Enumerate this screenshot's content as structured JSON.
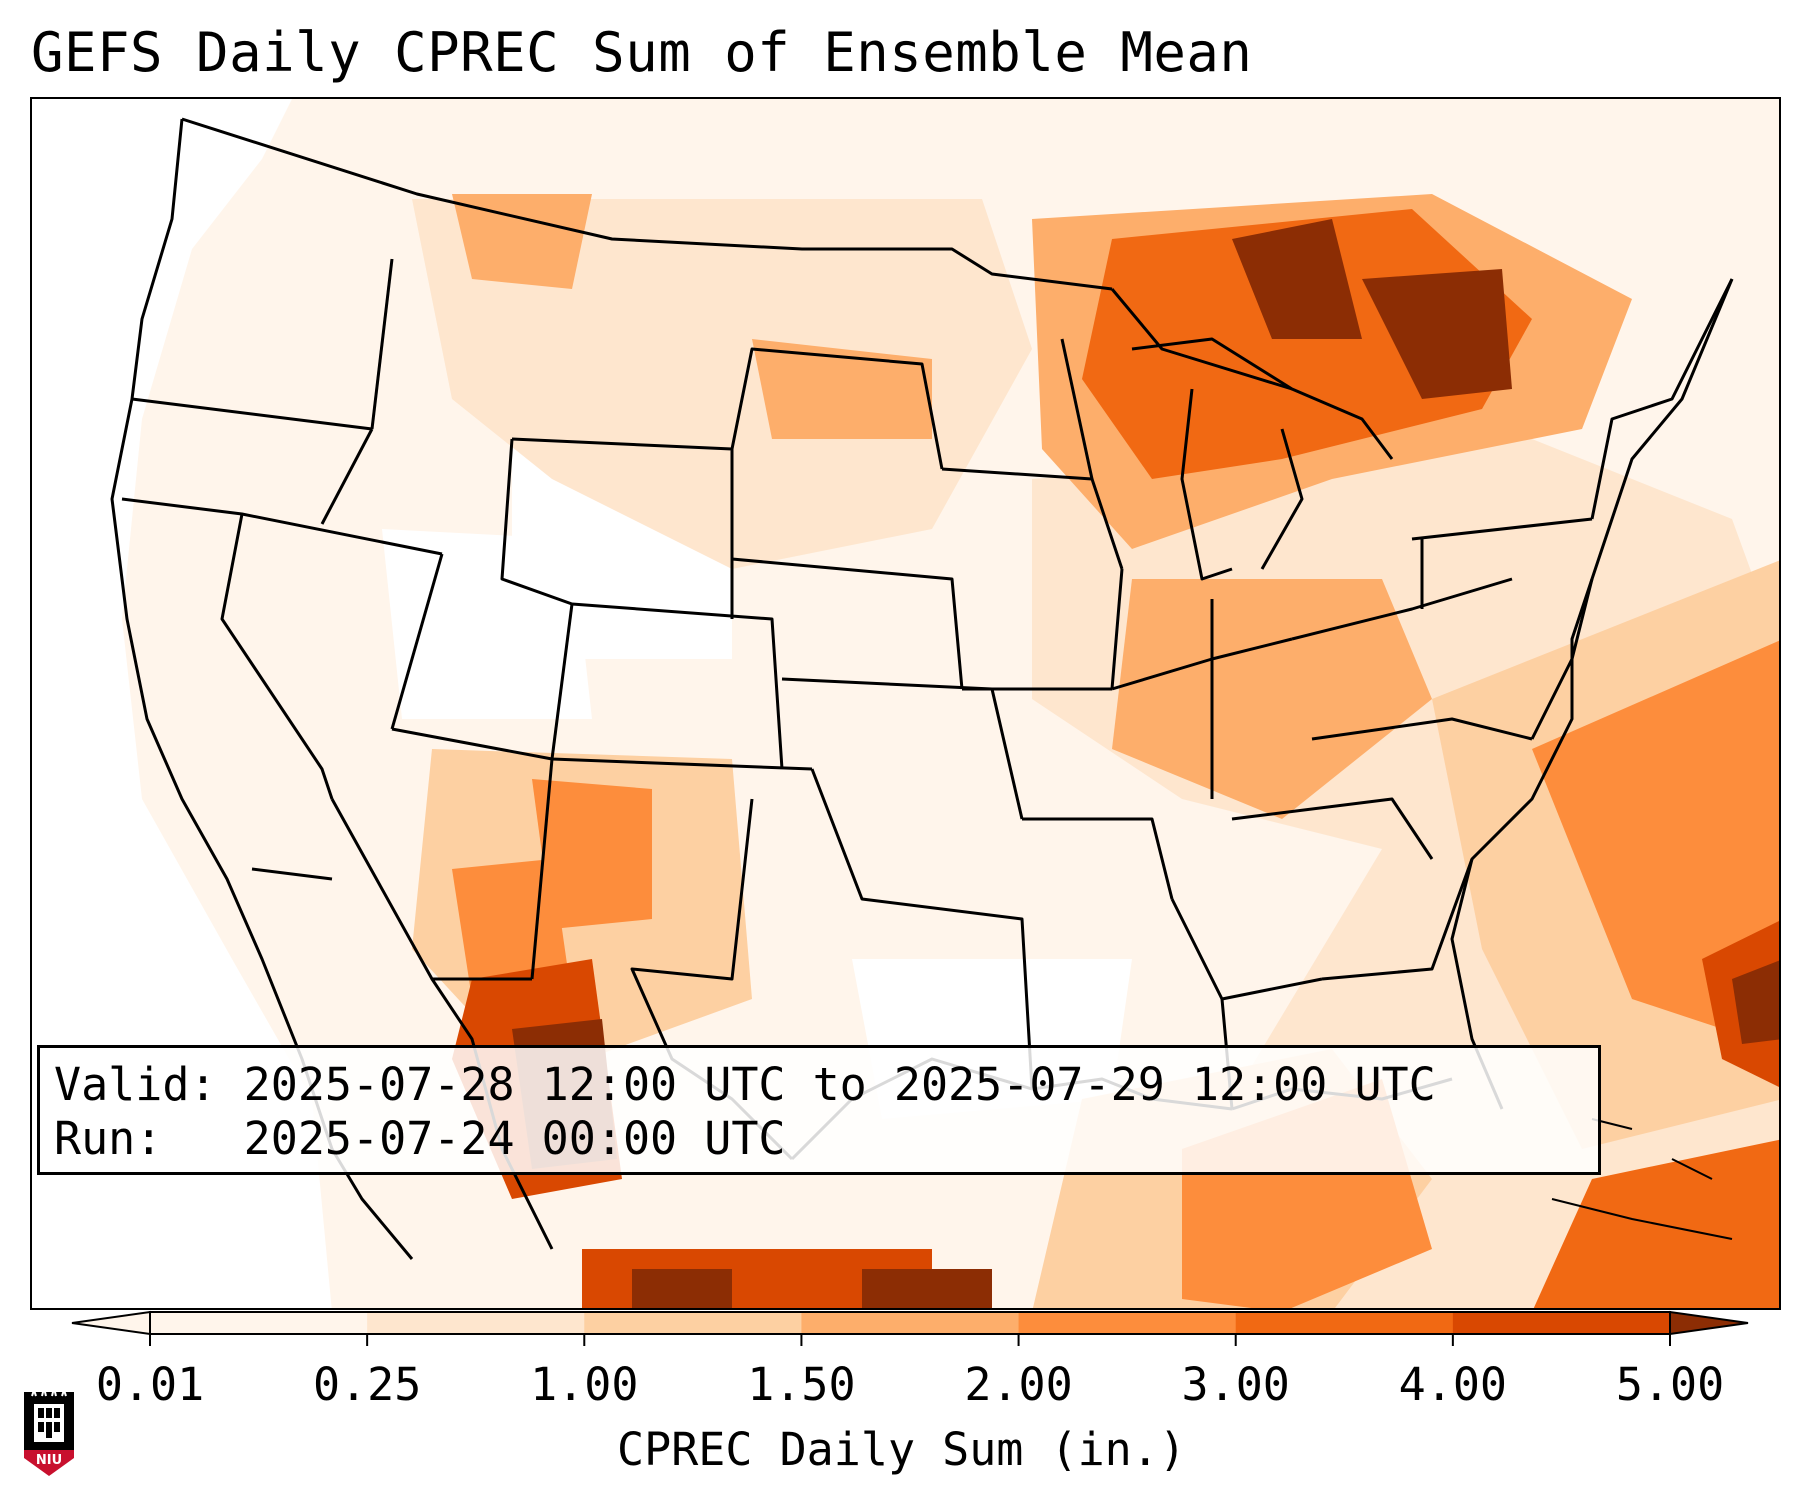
{
  "title": "GEFS Daily CPREC Sum of Ensemble Mean",
  "info": {
    "valid_label": "Valid:",
    "valid_value": "2025-07-28 12:00 UTC to 2025-07-29 12:00 UTC",
    "run_label": "Run:",
    "run_value": "2025-07-24 00:00 UTC"
  },
  "colorbar": {
    "label": "CPREC Daily Sum (in.)",
    "ticks": [
      "0.01",
      "0.25",
      "1.00",
      "1.50",
      "2.00",
      "3.00",
      "4.00",
      "5.00"
    ],
    "colors": [
      "#fff5eb",
      "#fee6ce",
      "#fdd0a2",
      "#fdae6b",
      "#fd8d3c",
      "#f16913",
      "#d94801",
      "#8c2d04"
    ],
    "extend": "both"
  },
  "logo": {
    "icon": "niu-logo",
    "text": "NIU",
    "accent": "#c8102e"
  },
  "map": {
    "region": "CONUS",
    "colormap": "Oranges",
    "border_color": "#000000"
  }
}
